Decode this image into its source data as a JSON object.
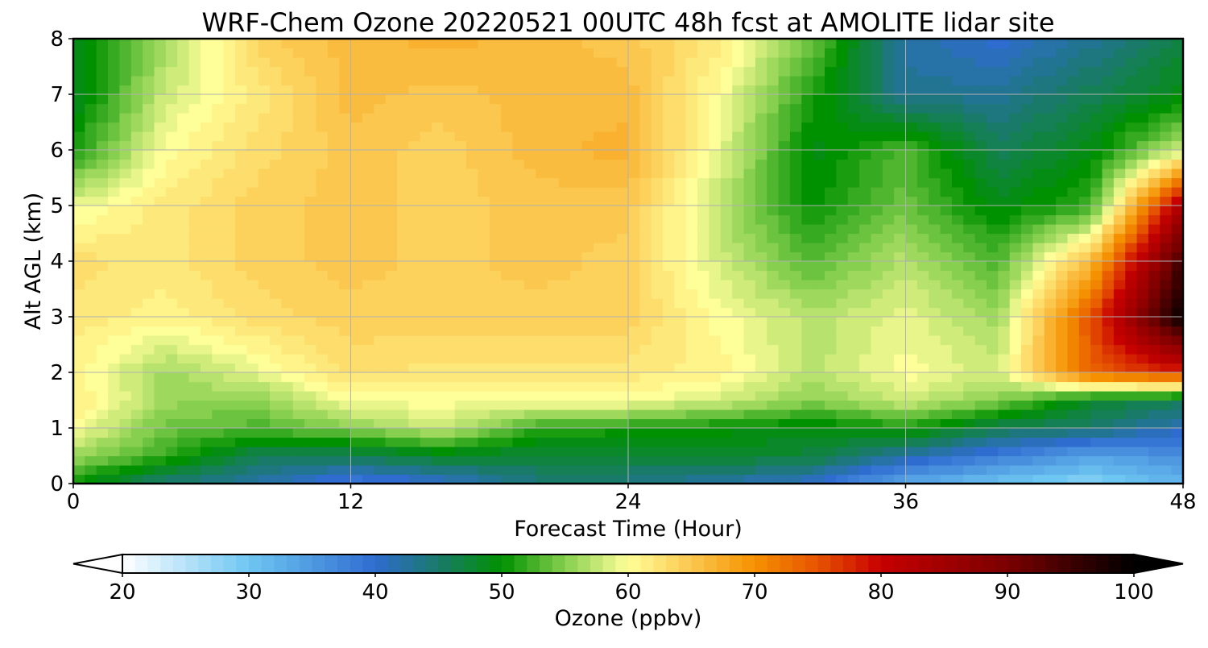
{
  "chart_data": {
    "type": "heatmap",
    "title": "WRF-Chem Ozone  20220521 00UTC 48h fcst at AMOLITE lidar site",
    "xlabel": "Forecast Time (Hour)",
    "ylabel": "Alt AGL (km)",
    "xlim": [
      0,
      48
    ],
    "ylim": [
      0,
      8
    ],
    "x_ticks": [
      "0",
      "12",
      "24",
      "36",
      "48"
    ],
    "y_ticks": [
      "0",
      "1",
      "2",
      "3",
      "4",
      "5",
      "6",
      "7",
      "8"
    ],
    "grid": true,
    "colorbar": {
      "label": "Ozone  (ppbv)",
      "range": [
        20,
        100
      ],
      "ticks": [
        "20",
        "30",
        "40",
        "50",
        "60",
        "70",
        "80",
        "90",
        "100"
      ],
      "extend": "both",
      "orientation": "horizontal-below"
    },
    "colormap_stops": [
      [
        20,
        "#ffffff"
      ],
      [
        30,
        "#6ec6f2"
      ],
      [
        40,
        "#2f6cd0"
      ],
      [
        45,
        "#1a7a6a"
      ],
      [
        50,
        "#009100"
      ],
      [
        55,
        "#86cf4f"
      ],
      [
        60,
        "#ffff99"
      ],
      [
        65,
        "#fbc74e"
      ],
      [
        70,
        "#f59100"
      ],
      [
        75,
        "#e65300"
      ],
      [
        80,
        "#c70000"
      ],
      [
        90,
        "#7a0000"
      ],
      [
        100,
        "#000000"
      ]
    ],
    "x_hours": [
      0,
      4,
      8,
      12,
      16,
      20,
      24,
      28,
      32,
      36,
      40,
      44,
      48
    ],
    "z_km": [
      0,
      0.5,
      1,
      1.5,
      2,
      3,
      4,
      5,
      6,
      7,
      8
    ],
    "ozone_ppbv": [
      [
        50,
        44,
        42,
        38,
        40,
        44,
        44,
        42,
        40,
        33,
        30,
        28,
        32
      ],
      [
        56,
        52,
        46,
        46,
        48,
        47,
        47,
        48,
        47,
        42,
        38,
        34,
        36
      ],
      [
        60,
        54,
        53,
        55,
        58,
        52,
        51,
        50,
        49,
        51,
        46,
        45,
        41
      ],
      [
        62,
        56,
        55,
        60,
        60,
        60,
        60,
        58,
        55,
        58,
        55,
        48,
        46
      ],
      [
        61,
        56,
        59,
        63,
        62,
        62,
        62,
        61,
        57,
        60,
        58,
        74,
        78
      ],
      [
        62,
        61,
        63,
        64,
        64,
        64,
        64,
        60,
        57,
        59,
        56,
        75,
        100
      ],
      [
        63,
        62,
        64,
        65,
        64,
        65,
        64,
        58,
        53,
        57,
        53,
        66,
        95
      ],
      [
        59,
        62,
        64,
        65,
        64,
        65,
        65,
        57,
        50,
        54,
        49,
        52,
        84
      ],
      [
        51,
        60,
        63,
        65,
        64,
        66,
        67,
        59,
        49,
        53,
        46,
        49,
        58
      ],
      [
        48,
        58,
        62,
        66,
        65,
        66,
        66,
        60,
        51,
        43,
        43,
        46,
        49
      ],
      [
        48,
        56,
        64,
        66,
        67,
        66,
        65,
        62,
        54,
        42,
        40,
        43,
        47
      ]
    ]
  }
}
